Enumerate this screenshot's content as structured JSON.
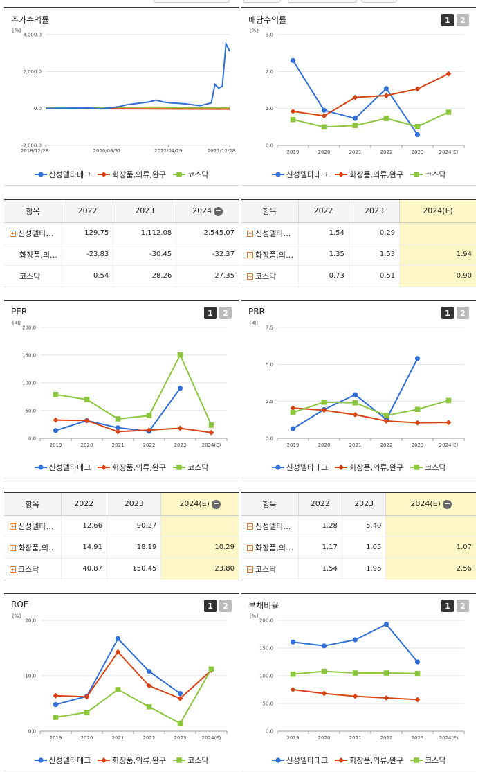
{
  "colors": {
    "s1": "#2f6fd6",
    "s2": "#d84315",
    "s3": "#8cc63f"
  },
  "legend": [
    "신성델타테크",
    "화장품,의류,완구",
    "코스닥"
  ],
  "pager": [
    "1",
    "2"
  ],
  "charts": {
    "stock": {
      "title": "주가수익률",
      "unit": "[%]",
      "yticks": [
        "4,000.0",
        "2,000.0",
        "0.0",
        "-2,000.0"
      ],
      "xticks": [
        "2018/12/28",
        "2020/08/31",
        "2022/04/29",
        "2023/12/28"
      ]
    },
    "div": {
      "title": "배당수익률",
      "unit": "[%]"
    },
    "per": {
      "title": "PER",
      "unit": "[배]"
    },
    "pbr": {
      "title": "PBR",
      "unit": "[배]"
    },
    "roe": {
      "title": "ROE",
      "unit": "[%]"
    },
    "debt": {
      "title": "부채비율",
      "unit": "[%]"
    }
  },
  "chart_data": [
    {
      "id": "stock",
      "type": "line",
      "title": "주가수익률",
      "ylabel": "[%]",
      "ylim": [
        -2000,
        4000
      ],
      "x_range": [
        "2018/12/28",
        "2023/12/28"
      ],
      "series": [
        {
          "name": "신성델타테크",
          "x": [
            0,
            0.08,
            0.16,
            0.24,
            0.3,
            0.36,
            0.4,
            0.44,
            0.48,
            0.52,
            0.56,
            0.6,
            0.64,
            0.68,
            0.72,
            0.76,
            0.8,
            0.84,
            0.86,
            0.88,
            0.9,
            0.92,
            0.94,
            0.96,
            0.98,
            1.0
          ],
          "y": [
            0,
            10,
            20,
            30,
            -20,
            50,
            100,
            200,
            250,
            300,
            350,
            450,
            350,
            300,
            280,
            250,
            200,
            150,
            200,
            250,
            300,
            1300,
            1100,
            1200,
            3500,
            3100
          ]
        },
        {
          "name": "화장품,의류,완구",
          "x": [
            0,
            0.2,
            0.4,
            0.6,
            0.8,
            1.0
          ],
          "y": [
            0,
            -10,
            -15,
            -20,
            -30,
            -35
          ]
        },
        {
          "name": "코스닥",
          "x": [
            0,
            0.2,
            0.4,
            0.6,
            0.8,
            1.0
          ],
          "y": [
            20,
            40,
            60,
            70,
            30,
            40
          ]
        }
      ]
    },
    {
      "id": "div",
      "type": "line",
      "title": "배당수익률",
      "ylabel": "[%]",
      "categories": [
        "2019",
        "2020",
        "2021",
        "2022",
        "2023",
        "2024(E)"
      ],
      "yticks": [
        0,
        1,
        2,
        3
      ],
      "ylim": [
        0,
        3
      ],
      "decimals": 1,
      "series": [
        {
          "name": "신성델타테크",
          "values": [
            2.3,
            0.95,
            0.73,
            1.54,
            0.29,
            null
          ]
        },
        {
          "name": "화장품,의류,완구",
          "values": [
            0.92,
            0.8,
            1.3,
            1.35,
            1.53,
            1.94
          ]
        },
        {
          "name": "코스닥",
          "values": [
            0.7,
            0.5,
            0.54,
            0.73,
            0.51,
            0.9
          ]
        }
      ]
    },
    {
      "id": "per",
      "type": "line",
      "title": "PER",
      "ylabel": "[배]",
      "categories": [
        "2019",
        "2020",
        "2021",
        "2022",
        "2023",
        "2024(E)"
      ],
      "yticks": [
        0,
        50,
        100,
        150,
        200
      ],
      "ylim": [
        0,
        200
      ],
      "decimals": 1,
      "series": [
        {
          "name": "신성델타테크",
          "values": [
            14,
            32,
            19,
            12.66,
            90.27,
            null
          ]
        },
        {
          "name": "화장품,의류,완구",
          "values": [
            33,
            32,
            12,
            14.91,
            18.19,
            10.29
          ]
        },
        {
          "name": "코스닥",
          "values": [
            79,
            70,
            35,
            40.87,
            150.45,
            23.8
          ]
        }
      ]
    },
    {
      "id": "pbr",
      "type": "line",
      "title": "PBR",
      "ylabel": "[배]",
      "categories": [
        "2019",
        "2020",
        "2021",
        "2022",
        "2023",
        "2024(E)"
      ],
      "yticks": [
        0,
        2.5,
        5,
        7.5
      ],
      "ylim": [
        0,
        7.5
      ],
      "decimals": 1,
      "series": [
        {
          "name": "신성델타테크",
          "values": [
            0.65,
            1.95,
            2.95,
            1.28,
            5.4,
            null
          ]
        },
        {
          "name": "화장품,의류,완구",
          "values": [
            2.05,
            1.9,
            1.6,
            1.17,
            1.05,
            1.07
          ]
        },
        {
          "name": "코스닥",
          "values": [
            1.75,
            2.45,
            2.4,
            1.54,
            1.96,
            2.56
          ]
        }
      ]
    },
    {
      "id": "roe",
      "type": "line",
      "title": "ROE",
      "ylabel": "[%]",
      "categories": [
        "2019",
        "2020",
        "2021",
        "2022",
        "2023",
        "2024(E)"
      ],
      "yticks": [
        0,
        10,
        20
      ],
      "ylim": [
        0,
        20
      ],
      "decimals": 1,
      "series": [
        {
          "name": "신성델타테크",
          "values": [
            4.8,
            6.3,
            16.7,
            10.8,
            6.8,
            null
          ]
        },
        {
          "name": "화장품,의류,완구",
          "values": [
            6.4,
            6.2,
            14.3,
            8.2,
            5.9,
            11
          ]
        },
        {
          "name": "코스닥",
          "values": [
            2.5,
            3.4,
            7.5,
            4.4,
            1.4,
            11.2
          ]
        }
      ]
    },
    {
      "id": "debt",
      "type": "line",
      "title": "부채비율",
      "ylabel": "[%]",
      "categories": [
        "2019",
        "2020",
        "2021",
        "2022",
        "2023",
        "2024(E)"
      ],
      "yticks": [
        0,
        50,
        100,
        150,
        200
      ],
      "ylim": [
        0,
        200
      ],
      "decimals": 1,
      "series": [
        {
          "name": "신성델타테크",
          "values": [
            161,
            154,
            165,
            193,
            125,
            null
          ]
        },
        {
          "name": "화장품,의류,완구",
          "values": [
            75,
            68,
            63,
            60,
            57,
            null
          ]
        },
        {
          "name": "코스닥",
          "values": [
            103,
            108,
            105,
            105,
            104,
            null
          ]
        }
      ]
    }
  ],
  "tables": {
    "stock": {
      "headers": [
        "항목",
        "2022",
        "2023",
        "2024"
      ],
      "rows": [
        {
          "name": "신성델타…",
          "v": [
            "129.75",
            "1,112.08",
            "2,545.07"
          ]
        },
        {
          "name": "화장품,의…",
          "v": [
            "-23.83",
            "-30.45",
            "-32.37"
          ]
        },
        {
          "name": "코스닥",
          "v": [
            "0.54",
            "28.26",
            "27.35"
          ]
        }
      ]
    },
    "div": {
      "headers": [
        "항목",
        "2022",
        "2023",
        "2024(E)"
      ],
      "rows": [
        {
          "name": "신성델타…",
          "v": [
            "1.54",
            "0.29",
            ""
          ]
        },
        {
          "name": "화장품,의…",
          "v": [
            "1.35",
            "1.53",
            "1.94"
          ]
        },
        {
          "name": "코스닥",
          "v": [
            "0.73",
            "0.51",
            "0.90"
          ]
        }
      ]
    },
    "per": {
      "headers": [
        "항목",
        "2022",
        "2023",
        "2024(E)"
      ],
      "rows": [
        {
          "name": "신성델타…",
          "v": [
            "12.66",
            "90.27",
            ""
          ]
        },
        {
          "name": "화장품,의…",
          "v": [
            "14.91",
            "18.19",
            "10.29"
          ]
        },
        {
          "name": "코스닥",
          "v": [
            "40.87",
            "150.45",
            "23.80"
          ]
        }
      ]
    },
    "pbr": {
      "headers": [
        "항목",
        "2022",
        "2023",
        "2024(E)"
      ],
      "rows": [
        {
          "name": "신성델타…",
          "v": [
            "1.28",
            "5.40",
            ""
          ]
        },
        {
          "name": "화장품,의…",
          "v": [
            "1.17",
            "1.05",
            "1.07"
          ]
        },
        {
          "name": "코스닥",
          "v": [
            "1.54",
            "1.96",
            "2.56"
          ]
        }
      ]
    }
  }
}
